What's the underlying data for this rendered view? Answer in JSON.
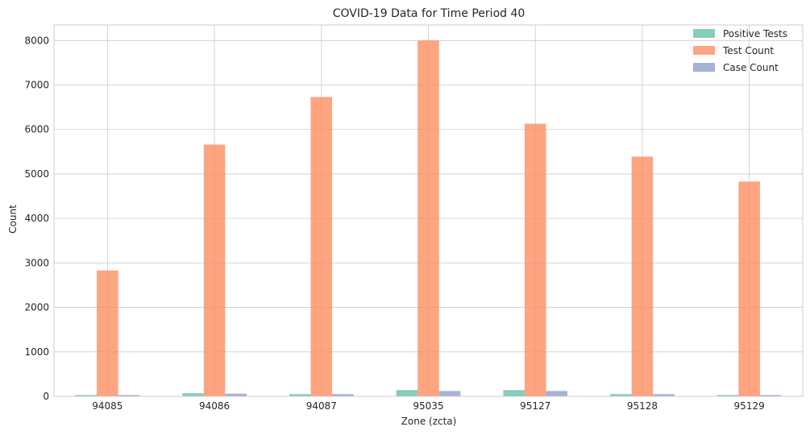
{
  "chart_data": {
    "type": "bar",
    "title": "COVID-19 Data for Time Period 40",
    "xlabel": "Zone (zcta)",
    "ylabel": "Count",
    "categories": [
      "94085",
      "94086",
      "94087",
      "95035",
      "95127",
      "95128",
      "95129"
    ],
    "series": [
      {
        "name": "Positive Tests",
        "color": "#66c2a5",
        "values": [
          30,
          70,
          50,
          140,
          140,
          50,
          30
        ]
      },
      {
        "name": "Test Count",
        "color": "#fc8d62",
        "values": [
          2830,
          5660,
          6730,
          8000,
          6130,
          5390,
          4830
        ]
      },
      {
        "name": "Case Count",
        "color": "#8da0cb",
        "values": [
          30,
          60,
          50,
          120,
          120,
          50,
          30
        ]
      }
    ],
    "ylim": [
      0,
      8350
    ],
    "yticks": [
      0,
      1000,
      2000,
      3000,
      4000,
      5000,
      6000,
      7000,
      8000
    ],
    "grid": true,
    "legend": "top-right"
  }
}
